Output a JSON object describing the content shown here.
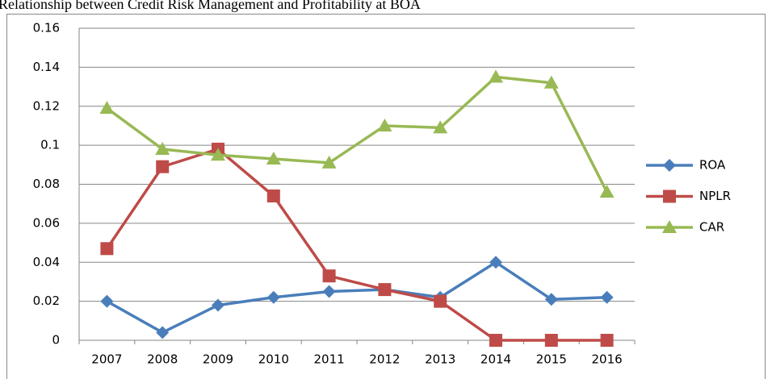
{
  "chart_data": {
    "type": "line",
    "title": "Relationship between Credit Risk Management and Profitability at BOA",
    "categories": [
      "2007",
      "2008",
      "2009",
      "2010",
      "2011",
      "2012",
      "2013",
      "2014",
      "2015",
      "2016"
    ],
    "series": [
      {
        "name": "ROA",
        "color": "#4a7ebb",
        "marker": "diamond",
        "values": [
          0.02,
          0.004,
          0.018,
          0.022,
          0.025,
          0.026,
          0.022,
          0.04,
          0.021,
          0.022
        ]
      },
      {
        "name": "NPLR",
        "color": "#be4b48",
        "marker": "square",
        "values": [
          0.047,
          0.089,
          0.098,
          0.074,
          0.033,
          0.026,
          0.02,
          0,
          0,
          0
        ]
      },
      {
        "name": "CAR",
        "color": "#98b954",
        "marker": "triangle",
        "values": [
          0.119,
          0.098,
          0.095,
          0.093,
          0.091,
          0.11,
          0.109,
          0.135,
          0.132,
          0.076
        ]
      }
    ],
    "ylim": [
      0,
      0.16
    ],
    "yticks": [
      0,
      0.02,
      0.04,
      0.06,
      0.08,
      0.1,
      0.12,
      0.14,
      0.16
    ],
    "grid": true,
    "legend": "right"
  }
}
